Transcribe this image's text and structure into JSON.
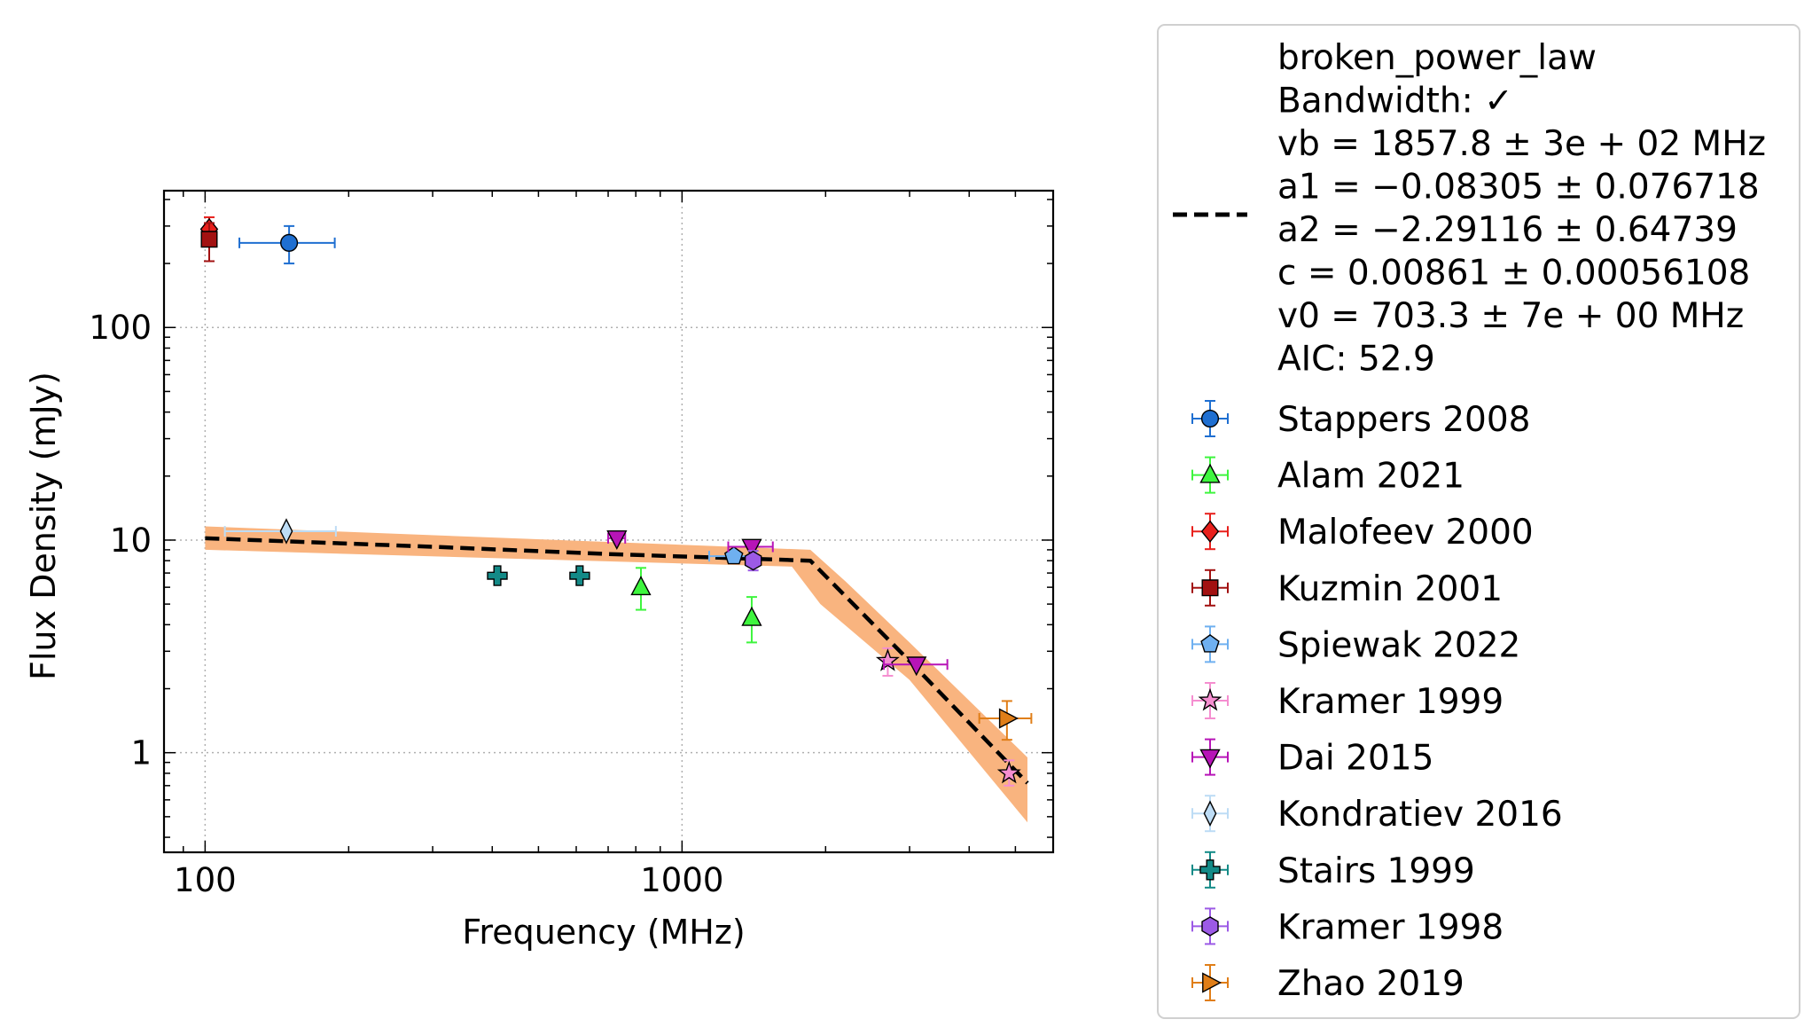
{
  "chart_data": {
    "type": "scatter",
    "xlabel": "Frequency (MHz)",
    "ylabel": "Flux Density (mJy)",
    "xscale": "log",
    "yscale": "log",
    "xlim": [
      82,
      6000
    ],
    "ylim": [
      0.34,
      440
    ],
    "x_ticks": [
      {
        "value": 100,
        "label": "100"
      },
      {
        "value": 1000,
        "label": "1000"
      }
    ],
    "y_ticks": [
      {
        "value": 1,
        "label": "1"
      },
      {
        "value": 10,
        "label": "10"
      },
      {
        "value": 100,
        "label": "100"
      }
    ],
    "grid": true,
    "legend_position": "outside right",
    "model": {
      "name": "broken_power_law",
      "legend_lines": [
        "broken_power_law",
        "Bandwidth: ✓",
        "vb = 1857.8 ± 3e + 02 MHz",
        "a1 = −0.08305 ± 0.076718",
        "a2 = −2.29116 ± 0.64739",
        "c = 0.00861 ± 0.00056108",
        "v0 = 703.3 ± 7e + 00 MHz",
        "AIC: 52.9"
      ],
      "line_color": "#000000",
      "band_color": "#f9b47f",
      "curve": [
        [
          100,
          10.2
        ],
        [
          300,
          9.3
        ],
        [
          700,
          8.6
        ],
        [
          1857.8,
          8.0
        ],
        [
          3000,
          2.7
        ],
        [
          5300,
          0.72
        ]
      ],
      "band_upper": [
        [
          100,
          11.6
        ],
        [
          1857.8,
          9.0
        ],
        [
          2200,
          6.4
        ],
        [
          3000,
          3.3
        ],
        [
          5300,
          0.95
        ]
      ],
      "band_lower": [
        [
          100,
          9.0
        ],
        [
          1700,
          7.5
        ],
        [
          1950,
          5.0
        ],
        [
          3000,
          2.2
        ],
        [
          5300,
          0.47
        ]
      ]
    },
    "series": [
      {
        "name": "Stappers 2008",
        "marker": "circle",
        "color": "#1f6fd1",
        "points": [
          {
            "x": 150,
            "y": 250,
            "xerr": [
              118,
              187
            ],
            "yerr": [
              200,
              300
            ]
          }
        ]
      },
      {
        "name": "Alam 2021",
        "marker": "triangle-up",
        "color": "#3ef53e",
        "points": [
          {
            "x": 820,
            "y": 6.0,
            "yerr": [
              4.7,
              7.4
            ]
          },
          {
            "x": 1400,
            "y": 4.3,
            "yerr": [
              3.3,
              5.4
            ]
          }
        ]
      },
      {
        "name": "Malofeev 2000",
        "marker": "diamond",
        "color": "#e8201c",
        "points": [
          {
            "x": 102,
            "y": 290,
            "yerr": [
              245,
              330
            ]
          }
        ]
      },
      {
        "name": "Kuzmin 2001",
        "marker": "square",
        "color": "#a21111",
        "points": [
          {
            "x": 102,
            "y": 260,
            "yerr": [
              205,
              310
            ]
          }
        ]
      },
      {
        "name": "Spiewak 2022",
        "marker": "pentagon",
        "color": "#6fb0f0",
        "points": [
          {
            "x": 1284,
            "y": 8.4,
            "xerr": [
              1140,
              1430
            ]
          }
        ]
      },
      {
        "name": "Kramer 1999",
        "marker": "star",
        "color": "#f58ed0",
        "points": [
          {
            "x": 2700,
            "y": 2.7,
            "yerr": [
              2.3,
              3.1
            ]
          },
          {
            "x": 4850,
            "y": 0.8,
            "yerr": [
              0.7,
              0.92
            ]
          }
        ]
      },
      {
        "name": "Dai 2015",
        "marker": "triangle-down",
        "color": "#b714b7",
        "points": [
          {
            "x": 730,
            "y": 10.2,
            "xerr": [
              700,
              760
            ]
          },
          {
            "x": 1400,
            "y": 9.3,
            "xerr": [
              1250,
              1550
            ]
          },
          {
            "x": 3100,
            "y": 2.6,
            "xerr": [
              2650,
              3600
            ]
          }
        ]
      },
      {
        "name": "Kondratiev 2016",
        "marker": "diamond-thin",
        "color": "#bddcf5",
        "points": [
          {
            "x": 148,
            "y": 11.0,
            "xerr": [
              110,
              188
            ]
          }
        ]
      },
      {
        "name": "Stairs 1999",
        "marker": "plus",
        "color": "#138a87",
        "points": [
          {
            "x": 410,
            "y": 6.8
          },
          {
            "x": 610,
            "y": 6.8
          }
        ]
      },
      {
        "name": "Kramer 1998",
        "marker": "hexagon",
        "color": "#9c5ae6",
        "points": [
          {
            "x": 1410,
            "y": 8.0,
            "yerr": [
              7.2,
              8.9
            ]
          }
        ]
      },
      {
        "name": "Zhao 2019",
        "marker": "triangle-right",
        "color": "#e07e18",
        "points": [
          {
            "x": 4800,
            "y": 1.45,
            "xerr": [
              4200,
              5400
            ],
            "yerr": [
              1.15,
              1.75
            ]
          }
        ]
      }
    ]
  }
}
